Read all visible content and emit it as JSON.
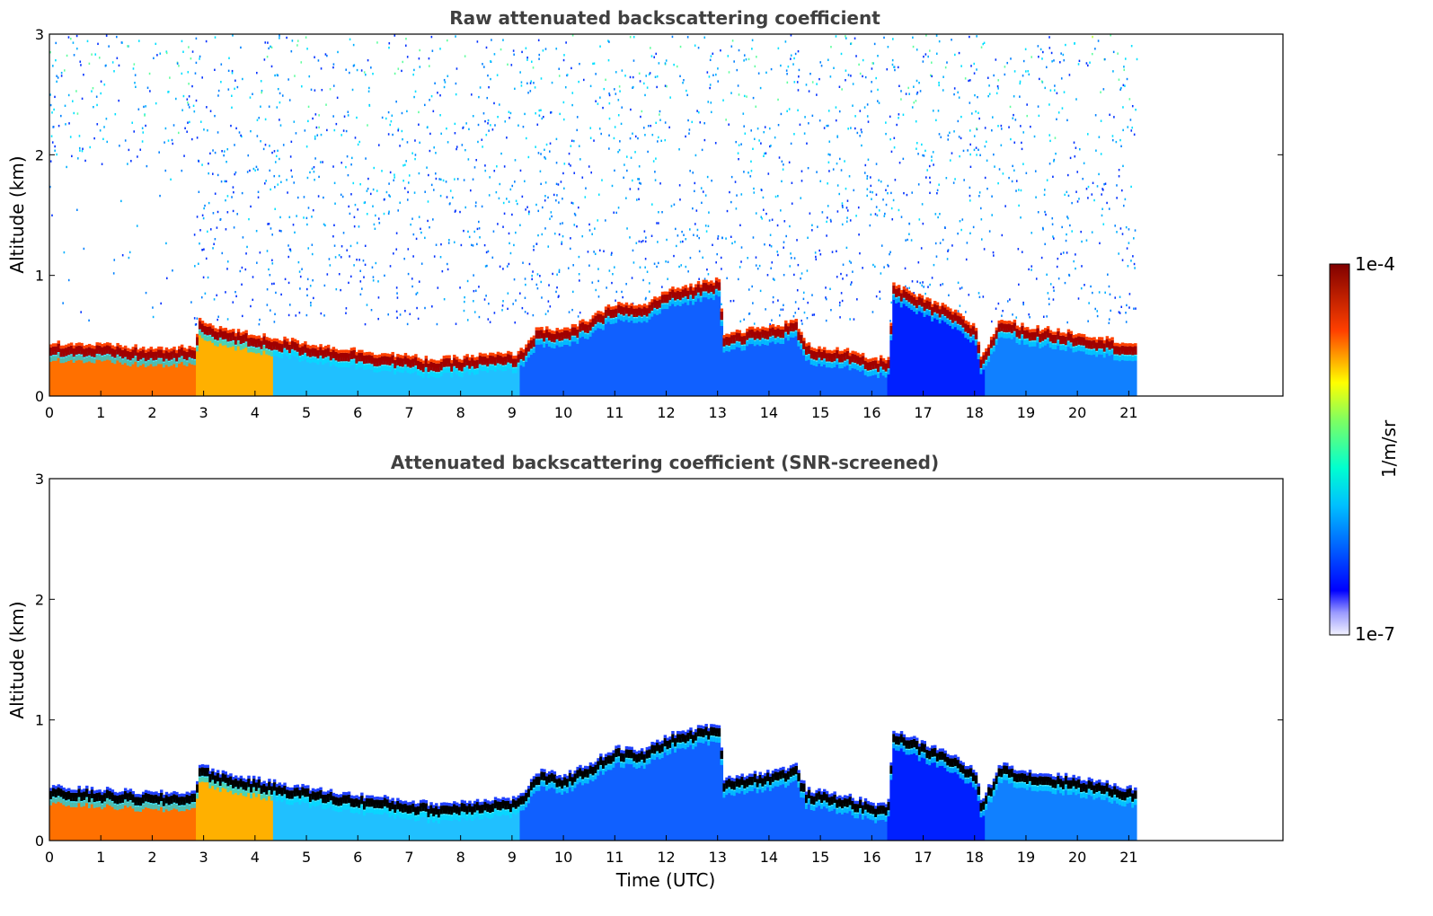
{
  "chart_data": [
    {
      "type": "heatmap",
      "title": "Raw attenuated backscattering coefficient",
      "ylabel": "Altitude (km)",
      "xlabel": "",
      "xlim": [
        0,
        24
      ],
      "ylim": [
        0,
        3
      ],
      "x_ticks": [
        0,
        1,
        2,
        3,
        4,
        5,
        6,
        7,
        8,
        9,
        10,
        11,
        12,
        13,
        14,
        15,
        16,
        17,
        18,
        19,
        20,
        21
      ],
      "y_ticks": [
        0,
        1,
        2,
        3
      ],
      "data_end_time": 21.15,
      "layer_top_km": [
        [
          0,
          0.42
        ],
        [
          1,
          0.4
        ],
        [
          2,
          0.37
        ],
        [
          2.8,
          0.38
        ],
        [
          2.9,
          0.6
        ],
        [
          3.5,
          0.52
        ],
        [
          4.5,
          0.45
        ],
        [
          5.5,
          0.38
        ],
        [
          6.5,
          0.33
        ],
        [
          7.5,
          0.28
        ],
        [
          8.5,
          0.32
        ],
        [
          9.1,
          0.33
        ],
        [
          9.5,
          0.55
        ],
        [
          10,
          0.52
        ],
        [
          10.5,
          0.62
        ],
        [
          11,
          0.75
        ],
        [
          11.5,
          0.72
        ],
        [
          12,
          0.85
        ],
        [
          12.5,
          0.9
        ],
        [
          13,
          0.95
        ],
        [
          13.1,
          0.5
        ],
        [
          14,
          0.55
        ],
        [
          14.5,
          0.6
        ],
        [
          14.7,
          0.4
        ],
        [
          15.5,
          0.35
        ],
        [
          16,
          0.28
        ],
        [
          16.3,
          0.3
        ],
        [
          16.4,
          0.9
        ],
        [
          17,
          0.78
        ],
        [
          17.5,
          0.7
        ],
        [
          18,
          0.55
        ],
        [
          18.1,
          0.3
        ],
        [
          18.5,
          0.62
        ],
        [
          19,
          0.55
        ],
        [
          20,
          0.5
        ],
        [
          21.15,
          0.4
        ]
      ],
      "colorscale": "jet",
      "scale": "log"
    },
    {
      "type": "heatmap",
      "title": "Attenuated backscattering coefficient (SNR-screened)",
      "ylabel": "Altitude (km)",
      "xlabel": "Time (UTC)",
      "xlim": [
        0,
        24
      ],
      "ylim": [
        0,
        3
      ],
      "x_ticks": [
        0,
        1,
        2,
        3,
        4,
        5,
        6,
        7,
        8,
        9,
        10,
        11,
        12,
        13,
        14,
        15,
        16,
        17,
        18,
        19,
        20,
        21
      ],
      "y_ticks": [
        0,
        1,
        2,
        3
      ],
      "data_end_time": 21.15,
      "colorscale": "jet",
      "scale": "log"
    }
  ],
  "colorbar": {
    "max_label": "1e-4",
    "min_label": "1e-7",
    "unit_label": "1/m/sr"
  }
}
